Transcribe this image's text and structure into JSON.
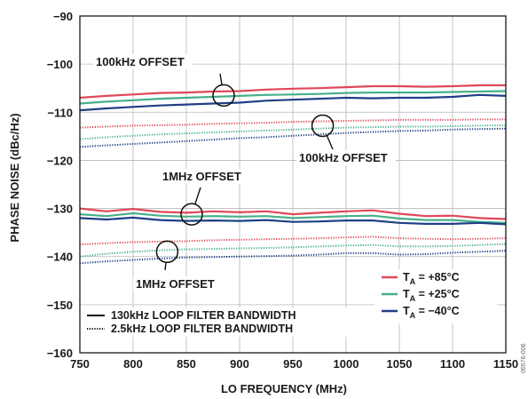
{
  "chart_data": {
    "type": "line",
    "xlabel": "LO FREQUENCY (MHz)",
    "ylabel": "PHASE NOISE (dBc/Hz)",
    "xlim": [
      750,
      1150
    ],
    "ylim": [
      -160,
      -90
    ],
    "x_ticks": [
      "750",
      "800",
      "850",
      "900",
      "950",
      "1000",
      "1050",
      "1100",
      "1150"
    ],
    "y_ticks": [
      "−90",
      "−100",
      "−110",
      "−120",
      "−130",
      "−140",
      "−150",
      "−160"
    ],
    "grid": true,
    "x": [
      750,
      775,
      800,
      825,
      850,
      875,
      900,
      925,
      950,
      975,
      1000,
      1025,
      1050,
      1075,
      1100,
      1125,
      1150
    ],
    "series": [
      {
        "group": "100kHz OFFSET",
        "temp": "+85°C",
        "bw": "130kHz",
        "color": "#e0485a",
        "style": "solid",
        "values": [
          -107.0,
          -106.6,
          -106.3,
          -106.0,
          -105.9,
          -105.7,
          -105.6,
          -105.3,
          -105.1,
          -105.0,
          -104.8,
          -104.6,
          -104.6,
          -104.7,
          -104.6,
          -104.4,
          -104.4
        ]
      },
      {
        "group": "100kHz OFFSET",
        "temp": "+25°C",
        "bw": "130kHz",
        "color": "#47b08a",
        "style": "solid",
        "values": [
          -108.2,
          -107.8,
          -107.5,
          -107.2,
          -107.0,
          -106.8,
          -106.6,
          -106.4,
          -106.3,
          -106.2,
          -106.0,
          -105.9,
          -105.9,
          -105.9,
          -105.8,
          -105.7,
          -105.6
        ]
      },
      {
        "group": "100kHz OFFSET",
        "temp": "−40°C",
        "bw": "130kHz",
        "color": "#1f3f86",
        "style": "solid",
        "values": [
          -109.6,
          -109.2,
          -108.9,
          -108.6,
          -108.4,
          -108.2,
          -108.0,
          -107.6,
          -107.4,
          -107.2,
          -107.0,
          -107.1,
          -107.0,
          -107.0,
          -106.8,
          -106.4,
          -106.6
        ]
      },
      {
        "group": "100kHz OFFSET",
        "temp": "+85°C",
        "bw": "2.5kHz",
        "color": "#e0485a",
        "style": "dotted",
        "values": [
          -113.2,
          -113.0,
          -112.8,
          -112.7,
          -112.6,
          -112.4,
          -112.3,
          -112.2,
          -112.0,
          -111.9,
          -111.8,
          -111.7,
          -111.6,
          -111.6,
          -111.6,
          -111.5,
          -111.5
        ]
      },
      {
        "group": "100kHz OFFSET",
        "temp": "+25°C",
        "bw": "2.5kHz",
        "color": "#47b08a",
        "style": "dotted",
        "values": [
          -115.6,
          -115.2,
          -114.9,
          -114.6,
          -114.4,
          -114.2,
          -114.0,
          -113.8,
          -113.6,
          -113.4,
          -113.2,
          -113.1,
          -113.0,
          -113.0,
          -112.9,
          -112.8,
          -112.7
        ]
      },
      {
        "group": "100kHz OFFSET",
        "temp": "−40°C",
        "bw": "2.5kHz",
        "color": "#1f3f86",
        "style": "dotted",
        "values": [
          -117.2,
          -116.9,
          -116.6,
          -116.3,
          -116.0,
          -115.7,
          -115.4,
          -115.2,
          -114.9,
          -114.6,
          -114.3,
          -114.1,
          -113.9,
          -113.8,
          -113.6,
          -113.5,
          -113.4
        ]
      },
      {
        "group": "1MHz OFFSET",
        "temp": "+85°C",
        "bw": "130kHz",
        "color": "#e0485a",
        "style": "solid",
        "values": [
          -130.0,
          -130.6,
          -130.1,
          -130.7,
          -130.9,
          -130.6,
          -130.8,
          -130.6,
          -131.2,
          -130.9,
          -130.6,
          -130.4,
          -131.1,
          -131.6,
          -131.5,
          -132.0,
          -132.2
        ]
      },
      {
        "group": "1MHz OFFSET",
        "temp": "+25°C",
        "bw": "130kHz",
        "color": "#47b08a",
        "style": "solid",
        "values": [
          -131.2,
          -131.6,
          -131.0,
          -131.5,
          -131.7,
          -131.6,
          -131.7,
          -131.6,
          -132.0,
          -131.8,
          -131.6,
          -131.5,
          -132.1,
          -132.4,
          -132.4,
          -132.8,
          -133.0
        ]
      },
      {
        "group": "1MHz OFFSET",
        "temp": "−40°C",
        "bw": "130kHz",
        "color": "#1f3f86",
        "style": "solid",
        "values": [
          -132.0,
          -132.3,
          -131.9,
          -132.4,
          -132.6,
          -132.5,
          -132.6,
          -132.4,
          -132.8,
          -132.7,
          -132.5,
          -132.5,
          -133.0,
          -133.2,
          -133.2,
          -133.0,
          -133.3
        ]
      },
      {
        "group": "1MHz OFFSET",
        "temp": "+85°C",
        "bw": "2.5kHz",
        "color": "#e0485a",
        "style": "dotted",
        "values": [
          -137.5,
          -137.2,
          -137.0,
          -136.9,
          -136.8,
          -136.6,
          -136.5,
          -136.4,
          -136.3,
          -136.2,
          -136.0,
          -135.9,
          -136.2,
          -136.3,
          -136.4,
          -136.3,
          -136.2
        ]
      },
      {
        "group": "1MHz OFFSET",
        "temp": "+25°C",
        "bw": "2.5kHz",
        "color": "#47b08a",
        "style": "dotted",
        "values": [
          -140.0,
          -139.4,
          -139.0,
          -138.7,
          -138.5,
          -138.4,
          -138.3,
          -138.2,
          -138.1,
          -137.9,
          -137.7,
          -137.6,
          -137.9,
          -137.9,
          -137.8,
          -137.6,
          -137.4
        ]
      },
      {
        "group": "1MHz OFFSET",
        "temp": "−40°C",
        "bw": "2.5kHz",
        "color": "#1f3f86",
        "style": "dotted",
        "values": [
          -141.4,
          -141.0,
          -140.7,
          -140.4,
          -140.2,
          -140.1,
          -140.0,
          -139.9,
          -139.8,
          -139.6,
          -139.3,
          -139.3,
          -139.6,
          -139.5,
          -139.2,
          -139.0,
          -138.8
        ]
      }
    ],
    "annotations": [
      {
        "text": "100kHz OFFSET",
        "x": 885,
        "y": -106.5
      },
      {
        "text": "100kHz OFFSET",
        "x": 978,
        "y": -112.8
      },
      {
        "text": "1MHz OFFSET",
        "x": 855,
        "y": -131.2
      },
      {
        "text": "1MHz OFFSET",
        "x": 832,
        "y": -139.0
      }
    ],
    "legend_temps": [
      {
        "prefix": "T",
        "sub": "A",
        "label": " = +85°C",
        "color": "#e0485a"
      },
      {
        "prefix": "T",
        "sub": "A",
        "label": " = +25°C",
        "color": "#47b08a"
      },
      {
        "prefix": "T",
        "sub": "A",
        "label": " = −40°C",
        "color": "#1f3f86"
      }
    ],
    "legend_temps_position": "bottom-right",
    "legend_styles": [
      {
        "label": "130kHz LOOP FILTER BANDWIDTH",
        "style": "solid"
      },
      {
        "label": "2.5kHz LOOP FILTER BANDWIDTH",
        "style": "dotted"
      }
    ],
    "legend_styles_position": "bottom-left",
    "figure_id": "06576-006"
  }
}
